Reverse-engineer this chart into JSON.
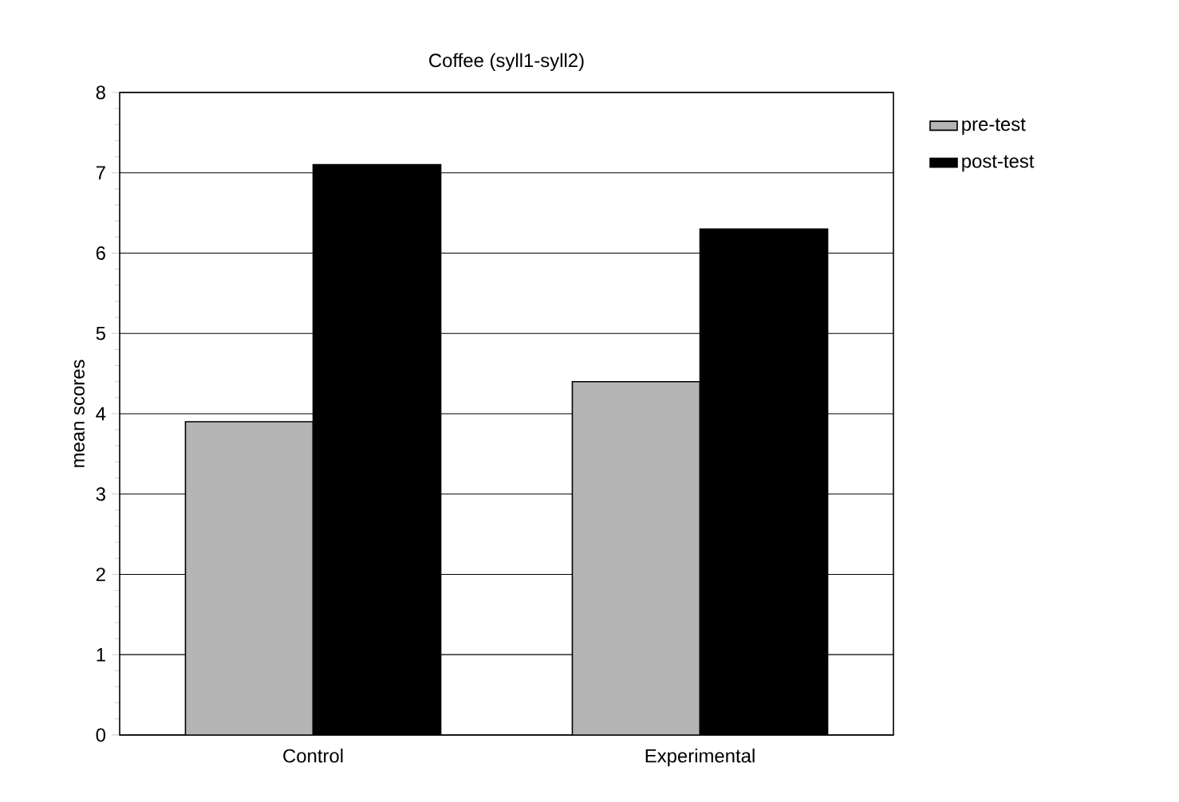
{
  "chart_data": {
    "type": "bar",
    "title": "Coffee (syll1-syll2)",
    "ylabel": "mean scores",
    "categories": [
      "Control",
      "Experimental"
    ],
    "series": [
      {
        "name": "pre-test",
        "color": "#b4b4b4",
        "values": [
          3.9,
          4.4
        ]
      },
      {
        "name": "post-test",
        "color": "#000000",
        "values": [
          7.1,
          6.3
        ]
      }
    ],
    "ylim": [
      0,
      8
    ],
    "yticks": [
      0,
      1,
      2,
      3,
      4,
      5,
      6,
      7,
      8
    ],
    "grid": "y",
    "legend": "top right"
  }
}
